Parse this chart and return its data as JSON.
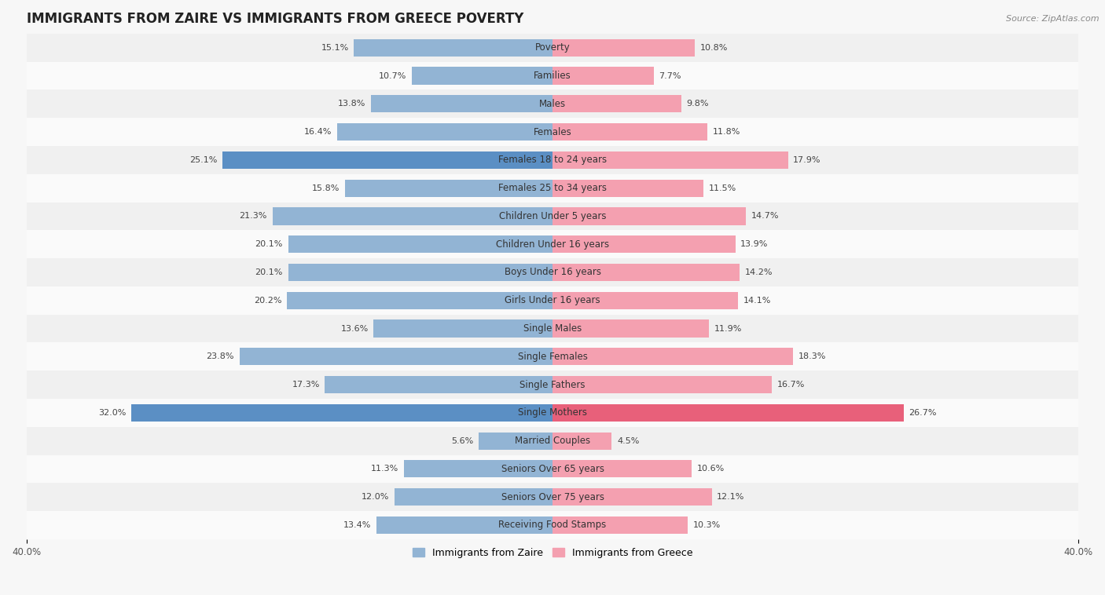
{
  "title": "IMMIGRANTS FROM ZAIRE VS IMMIGRANTS FROM GREECE POVERTY",
  "source": "Source: ZipAtlas.com",
  "categories": [
    "Poverty",
    "Families",
    "Males",
    "Females",
    "Females 18 to 24 years",
    "Females 25 to 34 years",
    "Children Under 5 years",
    "Children Under 16 years",
    "Boys Under 16 years",
    "Girls Under 16 years",
    "Single Males",
    "Single Females",
    "Single Fathers",
    "Single Mothers",
    "Married Couples",
    "Seniors Over 65 years",
    "Seniors Over 75 years",
    "Receiving Food Stamps"
  ],
  "zaire_values": [
    15.1,
    10.7,
    13.8,
    16.4,
    25.1,
    15.8,
    21.3,
    20.1,
    20.1,
    20.2,
    13.6,
    23.8,
    17.3,
    32.0,
    5.6,
    11.3,
    12.0,
    13.4
  ],
  "greece_values": [
    10.8,
    7.7,
    9.8,
    11.8,
    17.9,
    11.5,
    14.7,
    13.9,
    14.2,
    14.1,
    11.9,
    18.3,
    16.7,
    26.7,
    4.5,
    10.6,
    12.1,
    10.3
  ],
  "zaire_color": "#92b4d4",
  "greece_color": "#f4a0b0",
  "zaire_highlight_indices": [
    4,
    13
  ],
  "greece_highlight_indices": [
    13
  ],
  "zaire_highlight_color": "#5b8fc4",
  "greece_highlight_color": "#e8607a",
  "background_color": "#f7f7f7",
  "row_color_even": "#f0f0f0",
  "row_color_odd": "#fafafa",
  "xlim": 40.0,
  "legend_zaire": "Immigrants from Zaire",
  "legend_greece": "Immigrants from Greece",
  "bar_height": 0.62,
  "title_fontsize": 12,
  "label_fontsize": 8.5,
  "value_fontsize": 8,
  "axis_label_fontsize": 8.5
}
